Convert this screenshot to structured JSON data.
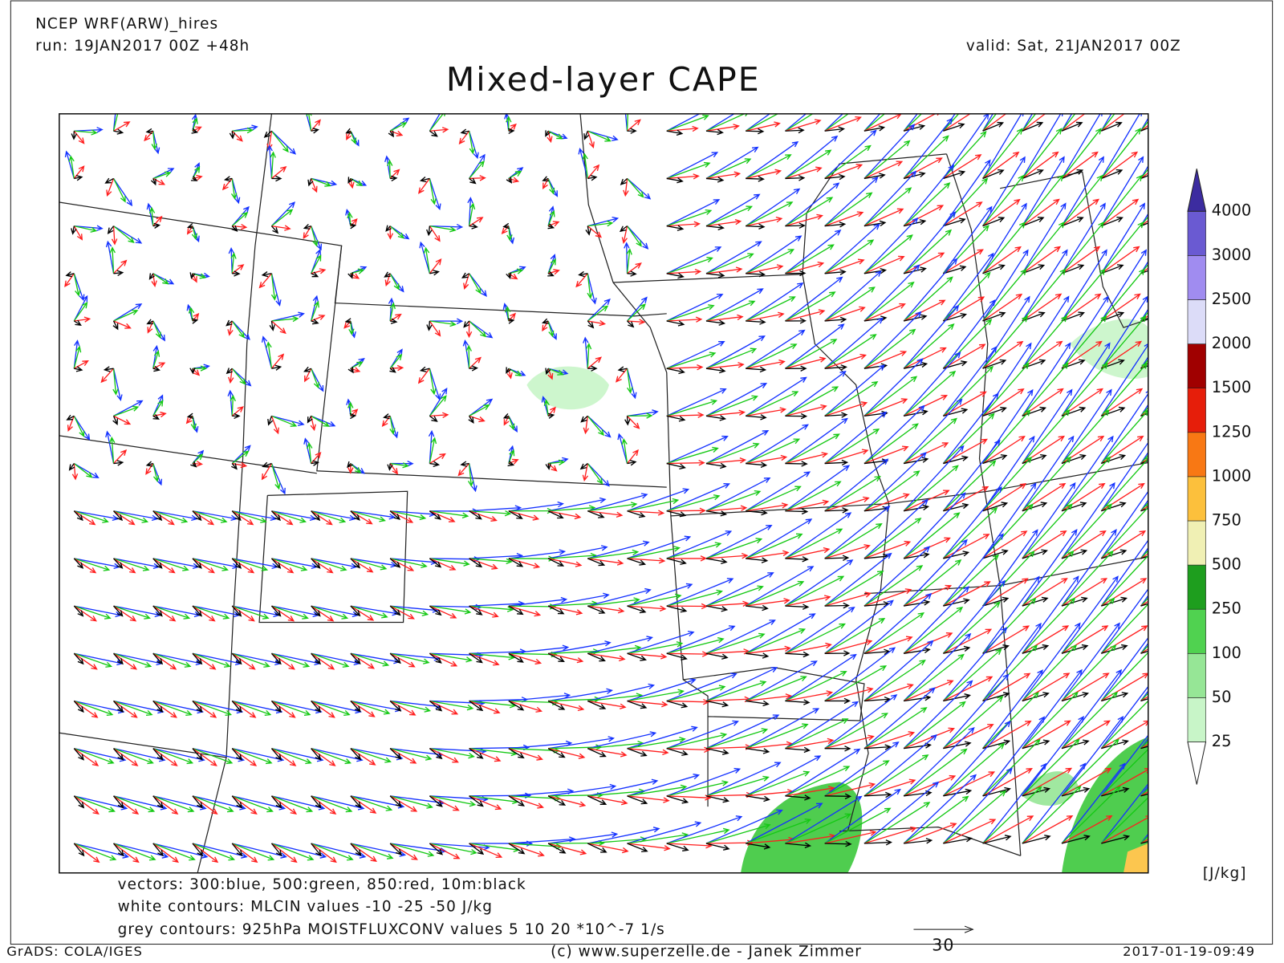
{
  "header": {
    "model": "NCEP WRF(ARW)_hires",
    "run": "run: 19JAN2017 00Z +48h",
    "valid": "valid: Sat, 21JAN2017 00Z",
    "title": "Mixed-layer CAPE"
  },
  "colorbar": {
    "levels": [
      25,
      50,
      100,
      250,
      500,
      750,
      1000,
      1250,
      1500,
      2000,
      2500,
      3000,
      4000
    ],
    "colors": [
      "#ffffff",
      "#c8f5c8",
      "#96e696",
      "#50d250",
      "#1e9e1e",
      "#f0f0b4",
      "#fcc03c",
      "#f87814",
      "#e61e0a",
      "#a00000",
      "#dcdcf8",
      "#a08cf0",
      "#6a5ad2",
      "#3c2ca0"
    ],
    "units": "[J/kg]"
  },
  "notes": [
    "vectors: 300:blue, 500:green, 850:red, 10m:black",
    "white contours: MLCIN values -10 -25 -50 J/kg",
    "grey contours: 925hPa MOISTFLUXCONV values 5 10 20 *10^-7 1/s"
  ],
  "reference_vector": "30",
  "footer": {
    "left": "GrADS: COLA/IGES",
    "center": "(c) www.superzelle.de - Janek Zimmer",
    "right": "2017-01-19-09:49"
  }
}
